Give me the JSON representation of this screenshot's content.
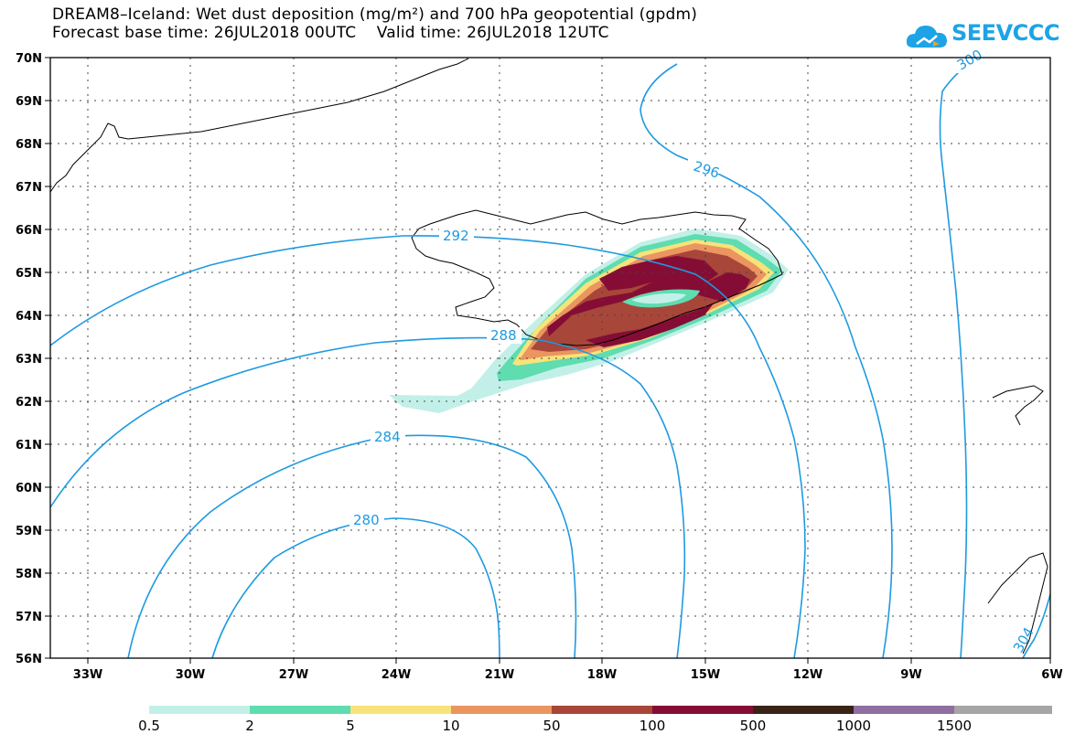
{
  "title_line1": "DREAM8–Iceland: Wet dust deposition (mg/m²) and 700 hPa geopotential (gpdm)",
  "title_line2": "Forecast base time: 26JUL2018 00UTC    Valid time: 26JUL2018 12UTC",
  "logo_text": "SEEVCCC",
  "logo_icon": "cloud-logo-icon",
  "map": {
    "lat_labels": [
      "70N",
      "69N",
      "68N",
      "67N",
      "66N",
      "65N",
      "64N",
      "63N",
      "62N",
      "61N",
      "60N",
      "59N",
      "58N",
      "57N",
      "56N"
    ],
    "lon_labels": [
      "33W",
      "30W",
      "27W",
      "24W",
      "21W",
      "18W",
      "15W",
      "12W",
      "9W",
      "6W"
    ],
    "contour_labels": [
      "300",
      "296",
      "292",
      "288",
      "284",
      "280",
      "304"
    ],
    "contour_color": "#1e9ae0"
  },
  "legend": {
    "labels": [
      "0.5",
      "2",
      "5",
      "10",
      "50",
      "100",
      "500",
      "1000",
      "1500"
    ],
    "colors": [
      "#c2f0e8",
      "#5fdcb0",
      "#f7e37a",
      "#eb9561",
      "#a8463a",
      "#850d35",
      "#3a2316",
      "#8f6ea0",
      "#a6a6a6"
    ]
  }
}
